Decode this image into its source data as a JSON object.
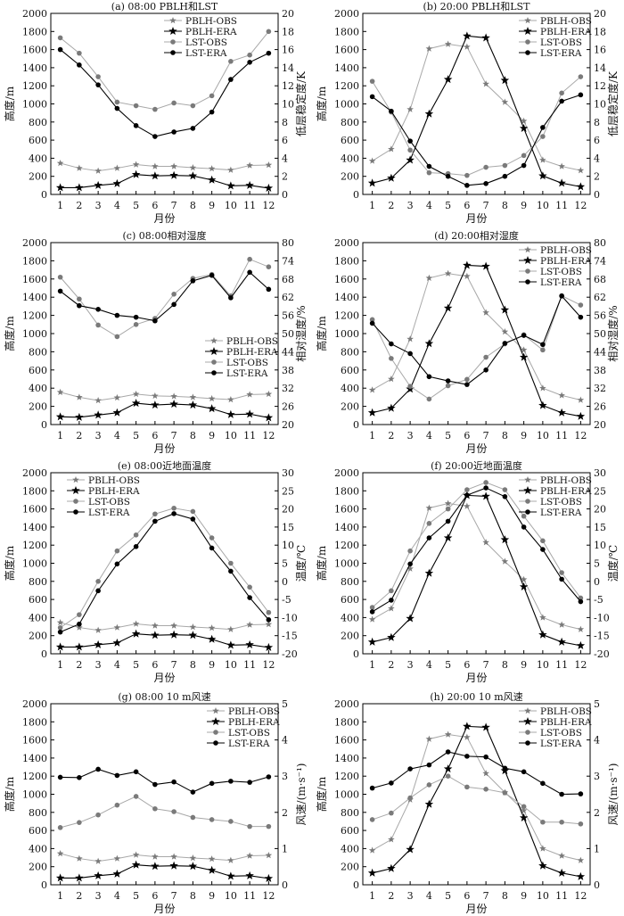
{
  "colors": {
    "obs_line": "#a8a8a8",
    "obs_marker": "#7a7a7a",
    "era": "#000000",
    "axis": "#000000"
  },
  "chart_data": [
    {
      "type": "line",
      "title": "(a) 08:00 PBLH和LST",
      "xlabel": "月份",
      "ylabel_left": "高度/m",
      "ylabel_right": "低层稳定度/K",
      "x": [
        1,
        2,
        3,
        4,
        5,
        6,
        7,
        8,
        9,
        10,
        11,
        12
      ],
      "ylim_left": [
        0,
        2000
      ],
      "yticks_left": [
        0,
        200,
        400,
        600,
        800,
        1000,
        1200,
        1400,
        1600,
        1800,
        2000
      ],
      "ylim_right": [
        0,
        20
      ],
      "yticks_right": [
        0,
        2,
        4,
        6,
        8,
        10,
        12,
        14,
        16,
        18,
        20
      ],
      "legend_position": "top",
      "series": [
        {
          "name": "PBLH-OBS",
          "axis": "left",
          "style": "obs",
          "marker": "star",
          "values": [
            345,
            290,
            260,
            290,
            330,
            310,
            310,
            295,
            285,
            270,
            320,
            325
          ]
        },
        {
          "name": "PBLH-ERA",
          "axis": "left",
          "style": "era",
          "marker": "star",
          "values": [
            75,
            75,
            100,
            120,
            220,
            205,
            210,
            205,
            160,
            95,
            100,
            70
          ]
        },
        {
          "name": "LST-OBS",
          "axis": "right",
          "style": "obs",
          "marker": "circle",
          "values": [
            17.3,
            15.6,
            13.0,
            10.2,
            9.8,
            9.4,
            10.1,
            9.8,
            10.9,
            14.7,
            15.4,
            18.0
          ]
        },
        {
          "name": "LST-ERA",
          "axis": "right",
          "style": "era",
          "marker": "circle",
          "values": [
            16.0,
            14.3,
            12.1,
            9.5,
            7.6,
            6.4,
            6.9,
            7.3,
            9.1,
            12.7,
            14.6,
            15.6
          ]
        }
      ]
    },
    {
      "type": "line",
      "title": "(b) 20:00 PBLH和LST",
      "xlabel": "月份",
      "ylabel_left": "高度/m",
      "ylabel_right": "低层稳定度/K",
      "x": [
        1,
        2,
        3,
        4,
        5,
        6,
        7,
        8,
        9,
        10,
        11,
        12
      ],
      "ylim_left": [
        0,
        2000
      ],
      "yticks_left": [
        0,
        200,
        400,
        600,
        800,
        1000,
        1200,
        1400,
        1600,
        1800,
        2000
      ],
      "ylim_right": [
        0,
        20
      ],
      "yticks_right": [
        0,
        2,
        4,
        6,
        8,
        10,
        12,
        14,
        16,
        18,
        20
      ],
      "legend_position": "top-right",
      "series": [
        {
          "name": "PBLH-OBS",
          "axis": "left",
          "style": "obs",
          "marker": "star",
          "values": [
            370,
            500,
            940,
            1610,
            1660,
            1630,
            1220,
            1020,
            810,
            380,
            310,
            265
          ]
        },
        {
          "name": "PBLH-ERA",
          "axis": "left",
          "style": "era",
          "marker": "star",
          "values": [
            125,
            180,
            380,
            890,
            1270,
            1750,
            1730,
            1260,
            730,
            205,
            125,
            85
          ]
        },
        {
          "name": "LST-OBS",
          "axis": "right",
          "style": "obs",
          "marker": "circle",
          "values": [
            12.5,
            9.1,
            4.9,
            2.4,
            2.3,
            2.1,
            3.0,
            3.2,
            4.3,
            6.4,
            11.2,
            13.0
          ]
        },
        {
          "name": "LST-ERA",
          "axis": "right",
          "style": "era",
          "marker": "circle",
          "values": [
            10.8,
            9.2,
            5.9,
            3.1,
            2.0,
            1.0,
            1.2,
            2.0,
            3.2,
            7.4,
            10.3,
            11.0
          ]
        }
      ]
    },
    {
      "type": "line",
      "title": "(c) 08:00相对湿度",
      "xlabel": "月份",
      "ylabel_left": "高度/m",
      "ylabel_right": "相对湿度/%",
      "x": [
        1,
        2,
        3,
        4,
        5,
        6,
        7,
        8,
        9,
        10,
        11,
        12
      ],
      "ylim_left": [
        0,
        2000
      ],
      "yticks_left": [
        0,
        200,
        400,
        600,
        800,
        1000,
        1200,
        1400,
        1600,
        1800,
        2000
      ],
      "ylim_right": [
        20,
        80
      ],
      "yticks_right": [
        20,
        26,
        32,
        38,
        44,
        50,
        56,
        62,
        68,
        74,
        80
      ],
      "legend_position": "bottom-right",
      "series": [
        {
          "name": "PBLH-OBS",
          "axis": "left",
          "style": "obs",
          "marker": "star",
          "values": [
            355,
            300,
            265,
            295,
            335,
            315,
            310,
            300,
            285,
            275,
            330,
            335
          ]
        },
        {
          "name": "PBLH-ERA",
          "axis": "left",
          "style": "era",
          "marker": "star",
          "values": [
            85,
            80,
            105,
            130,
            235,
            215,
            225,
            215,
            175,
            110,
            115,
            75
          ]
        },
        {
          "name": "LST-OBS",
          "axis": "right",
          "style": "obs",
          "marker": "circle",
          "values": [
            68.6,
            61.4,
            52.8,
            49.0,
            53.0,
            55.0,
            63.0,
            68.2,
            69.5,
            62.4,
            74.5,
            72.0
          ]
        },
        {
          "name": "LST-ERA",
          "axis": "right",
          "style": "era",
          "marker": "circle",
          "values": [
            64.0,
            59.2,
            58.0,
            56.0,
            55.4,
            54.2,
            59.6,
            67.4,
            69.2,
            61.8,
            70.2,
            64.6
          ]
        }
      ]
    },
    {
      "type": "line",
      "title": "(d) 20:00相对湿度",
      "xlabel": "月份",
      "ylabel_left": "高度/m",
      "ylabel_right": "相对湿度/%",
      "x": [
        1,
        2,
        3,
        4,
        5,
        6,
        7,
        8,
        9,
        10,
        11,
        12
      ],
      "ylim_left": [
        0,
        2000
      ],
      "yticks_left": [
        0,
        200,
        400,
        600,
        800,
        1000,
        1200,
        1400,
        1600,
        1800,
        2000
      ],
      "ylim_right": [
        20,
        80
      ],
      "yticks_right": [
        20,
        26,
        32,
        38,
        44,
        50,
        56,
        62,
        68,
        74,
        80
      ],
      "legend_position": "top-right",
      "series": [
        {
          "name": "PBLH-OBS",
          "axis": "left",
          "style": "obs",
          "marker": "star",
          "values": [
            380,
            500,
            940,
            1610,
            1660,
            1630,
            1230,
            1020,
            820,
            400,
            320,
            270
          ]
        },
        {
          "name": "PBLH-ERA",
          "axis": "left",
          "style": "era",
          "marker": "star",
          "values": [
            130,
            180,
            390,
            890,
            1280,
            1750,
            1740,
            1260,
            740,
            210,
            130,
            90
          ]
        },
        {
          "name": "LST-OBS",
          "axis": "right",
          "style": "obs",
          "marker": "circle",
          "values": [
            54.6,
            41.8,
            32.6,
            28.4,
            32.8,
            34.9,
            42.2,
            46.6,
            49.6,
            44.6,
            62.5,
            59.4
          ]
        },
        {
          "name": "LST-ERA",
          "axis": "right",
          "style": "era",
          "marker": "circle",
          "values": [
            53.4,
            46.6,
            43.4,
            35.8,
            34.4,
            33.2,
            38.0,
            46.8,
            49.4,
            46.4,
            62.4,
            55.4
          ]
        }
      ]
    },
    {
      "type": "line",
      "title": "(e) 08:00近地面温度",
      "xlabel": "月份",
      "ylabel_left": "高度/m",
      "ylabel_right": "温度/℃",
      "x": [
        1,
        2,
        3,
        4,
        5,
        6,
        7,
        8,
        9,
        10,
        11,
        12
      ],
      "ylim_left": [
        0,
        2000
      ],
      "yticks_left": [
        0,
        200,
        400,
        600,
        800,
        1000,
        1200,
        1400,
        1600,
        1800,
        2000
      ],
      "ylim_right": [
        -20,
        30
      ],
      "yticks_right": [
        -20,
        -15,
        -10,
        -5,
        0,
        5,
        10,
        15,
        20,
        25,
        30
      ],
      "legend_position": "top-left",
      "series": [
        {
          "name": "PBLH-OBS",
          "axis": "left",
          "style": "obs",
          "marker": "star",
          "values": [
            345,
            290,
            260,
            290,
            330,
            310,
            310,
            295,
            285,
            270,
            320,
            325
          ]
        },
        {
          "name": "PBLH-ERA",
          "axis": "left",
          "style": "era",
          "marker": "star",
          "values": [
            75,
            75,
            100,
            120,
            220,
            205,
            210,
            205,
            160,
            95,
            100,
            70
          ]
        },
        {
          "name": "LST-OBS",
          "axis": "right",
          "style": "obs",
          "marker": "circle",
          "values": [
            -12.8,
            -9.2,
            0.0,
            8.4,
            12.8,
            18.6,
            20.2,
            19.3,
            12.0,
            5.0,
            -1.6,
            -8.6
          ]
        },
        {
          "name": "LST-ERA",
          "axis": "right",
          "style": "era",
          "marker": "circle",
          "values": [
            -14.0,
            -11.8,
            -2.6,
            4.8,
            9.6,
            16.6,
            18.7,
            17.2,
            9.2,
            2.8,
            -4.5,
            -10.6
          ]
        }
      ]
    },
    {
      "type": "line",
      "title": "(f) 20:00近地面温度",
      "xlabel": "月份",
      "ylabel_left": "高度/m",
      "ylabel_right": "温度/℃",
      "x": [
        1,
        2,
        3,
        4,
        5,
        6,
        7,
        8,
        9,
        10,
        11,
        12
      ],
      "ylim_left": [
        0,
        2000
      ],
      "yticks_left": [
        0,
        200,
        400,
        600,
        800,
        1000,
        1200,
        1400,
        1600,
        1800,
        2000
      ],
      "ylim_right": [
        -20,
        30
      ],
      "yticks_right": [
        -20,
        -15,
        -10,
        -5,
        0,
        5,
        10,
        15,
        20,
        25,
        30
      ],
      "legend_position": "top-right",
      "series": [
        {
          "name": "PBLH-OBS",
          "axis": "left",
          "style": "obs",
          "marker": "star",
          "values": [
            380,
            500,
            940,
            1610,
            1660,
            1630,
            1230,
            1020,
            820,
            400,
            320,
            270
          ]
        },
        {
          "name": "PBLH-ERA",
          "axis": "left",
          "style": "era",
          "marker": "star",
          "values": [
            130,
            180,
            390,
            890,
            1280,
            1750,
            1740,
            1260,
            740,
            210,
            130,
            90
          ]
        },
        {
          "name": "LST-OBS",
          "axis": "right",
          "style": "obs",
          "marker": "circle",
          "values": [
            -7.2,
            -2.6,
            8.4,
            16.0,
            20.0,
            25.3,
            27.3,
            25.3,
            18.0,
            11.2,
            2.4,
            -4.6
          ]
        },
        {
          "name": "LST-ERA",
          "axis": "right",
          "style": "era",
          "marker": "circle",
          "values": [
            -8.4,
            -5.2,
            4.8,
            12.0,
            16.6,
            23.8,
            25.8,
            23.4,
            15.0,
            8.8,
            0.6,
            -5.6
          ]
        }
      ]
    },
    {
      "type": "line",
      "title": "(g) 08:00 10 m风速",
      "xlabel": "月份",
      "ylabel_left": "高度/m",
      "ylabel_right": "风速/(m·s⁻¹)",
      "x": [
        1,
        2,
        3,
        4,
        5,
        6,
        7,
        8,
        9,
        10,
        11,
        12
      ],
      "ylim_left": [
        0,
        2000
      ],
      "yticks_left": [
        0,
        200,
        400,
        600,
        800,
        1000,
        1200,
        1400,
        1600,
        1800,
        2000
      ],
      "ylim_right": [
        0,
        5
      ],
      "yticks_right": [
        0,
        1,
        2,
        3,
        4,
        5
      ],
      "legend_position": "top-right",
      "series": [
        {
          "name": "PBLH-OBS",
          "axis": "left",
          "style": "obs",
          "marker": "star",
          "values": [
            345,
            290,
            260,
            290,
            330,
            310,
            310,
            295,
            285,
            270,
            320,
            325
          ]
        },
        {
          "name": "PBLH-ERA",
          "axis": "left",
          "style": "era",
          "marker": "star",
          "values": [
            75,
            75,
            100,
            120,
            220,
            205,
            210,
            205,
            160,
            95,
            100,
            70
          ]
        },
        {
          "name": "LST-OBS",
          "axis": "right",
          "style": "obs",
          "marker": "circle",
          "values": [
            1.58,
            1.72,
            1.93,
            2.2,
            2.44,
            2.1,
            2.02,
            1.86,
            1.8,
            1.75,
            1.61,
            1.61
          ]
        },
        {
          "name": "LST-ERA",
          "axis": "right",
          "style": "era",
          "marker": "circle",
          "values": [
            2.97,
            2.96,
            3.19,
            3.02,
            3.12,
            2.77,
            2.84,
            2.56,
            2.8,
            2.86,
            2.83,
            2.98
          ]
        }
      ]
    },
    {
      "type": "line",
      "title": "(h) 20:00 10 m风速",
      "xlabel": "月份",
      "ylabel_left": "高度/m",
      "ylabel_right": "风速/(m·s⁻¹)",
      "x": [
        1,
        2,
        3,
        4,
        5,
        6,
        7,
        8,
        9,
        10,
        11,
        12
      ],
      "ylim_left": [
        0,
        2000
      ],
      "yticks_left": [
        0,
        200,
        400,
        600,
        800,
        1000,
        1200,
        1400,
        1600,
        1800,
        2000
      ],
      "ylim_right": [
        0,
        5
      ],
      "yticks_right": [
        0,
        1,
        2,
        3,
        4,
        5
      ],
      "legend_position": "top-right",
      "series": [
        {
          "name": "PBLH-OBS",
          "axis": "left",
          "style": "obs",
          "marker": "star",
          "values": [
            380,
            500,
            940,
            1610,
            1660,
            1630,
            1230,
            1020,
            820,
            400,
            320,
            270
          ]
        },
        {
          "name": "PBLH-ERA",
          "axis": "left",
          "style": "era",
          "marker": "star",
          "values": [
            130,
            180,
            390,
            890,
            1280,
            1750,
            1740,
            1260,
            740,
            210,
            130,
            90
          ]
        },
        {
          "name": "LST-OBS",
          "axis": "right",
          "style": "obs",
          "marker": "circle",
          "values": [
            1.8,
            1.98,
            2.4,
            2.76,
            3.0,
            2.7,
            2.64,
            2.54,
            2.16,
            1.73,
            1.73,
            1.68
          ]
        },
        {
          "name": "LST-ERA",
          "axis": "right",
          "style": "era",
          "marker": "circle",
          "values": [
            2.67,
            2.81,
            3.2,
            3.31,
            3.67,
            3.55,
            3.53,
            3.22,
            3.12,
            2.8,
            2.5,
            2.51
          ]
        }
      ]
    }
  ]
}
